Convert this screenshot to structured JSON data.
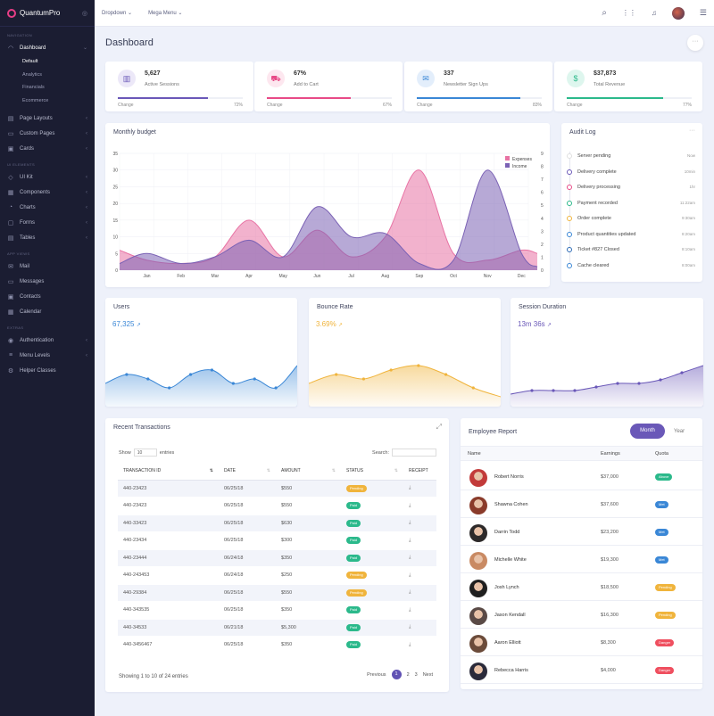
{
  "brand": {
    "name": "QuantumPro"
  },
  "sidebar": {
    "h_nav": "Navigation",
    "h_elem": "UI Elements",
    "h_apps": "App Views",
    "h_extra": "Extras",
    "dashboard": "Dashboard",
    "subs": [
      "Default",
      "Analytics",
      "Financials",
      "Ecommerce"
    ],
    "items1": [
      "Page Layouts",
      "Custom Pages",
      "Cards"
    ],
    "items2": [
      "UI Kit",
      "Components",
      "Charts",
      "Forms",
      "Tables"
    ],
    "items3": [
      "Mail",
      "Messages",
      "Contacts",
      "Calendar"
    ],
    "items4": [
      "Authentication",
      "Menu Levels",
      "Helper Classes"
    ]
  },
  "topbar": {
    "dropdown": "Dropdown",
    "mega": "Mega Menu"
  },
  "page": {
    "title": "Dashboard"
  },
  "stats": [
    {
      "value": "5,627",
      "label": "Active Sessions",
      "change": "Change",
      "pct": "72%",
      "progress": 0.72,
      "color": "#6a58b8",
      "bg": "#ece8f8",
      "icon": "bar-chart-icon",
      "glyph": "▥"
    },
    {
      "value": "67%",
      "label": "Add to Cart",
      "change": "Change",
      "pct": "67%",
      "progress": 0.67,
      "color": "#e84a87",
      "bg": "#fde7ef",
      "icon": "cart-icon",
      "glyph": "⛟"
    },
    {
      "value": "337",
      "label": "Newsletter Sign Ups",
      "change": "Change",
      "pct": "83%",
      "progress": 0.83,
      "color": "#3a87d6",
      "bg": "#e3eefb",
      "icon": "mail-icon",
      "glyph": "✉"
    },
    {
      "value": "$37,873",
      "label": "Total Revenue",
      "change": "Change",
      "pct": "77%",
      "progress": 0.77,
      "color": "#2bb98b",
      "bg": "#def6ee",
      "icon": "dollar-icon",
      "glyph": "$"
    }
  ],
  "budget": {
    "title": "Monthly budget"
  },
  "chart_data": {
    "type": "area",
    "title": "Monthly budget",
    "categories": [
      "Jan",
      "Feb",
      "Mar",
      "Apr",
      "May",
      "Jun",
      "Jul",
      "Aug",
      "Sep",
      "Oct",
      "Nov",
      "Dec"
    ],
    "ylim_left": [
      0,
      35
    ],
    "ylim_right": [
      0,
      9
    ],
    "series": [
      {
        "name": "Expenses",
        "color": "#e873a4",
        "values": [
          3,
          2,
          4,
          15,
          4,
          12,
          4,
          10,
          30,
          5,
          3,
          6
        ]
      },
      {
        "name": "Income",
        "color": "#7b62b5",
        "values": [
          5,
          2,
          4,
          9,
          4,
          19,
          10,
          11,
          2,
          3,
          30,
          5
        ]
      }
    ]
  },
  "audit": {
    "title": "Audit Log",
    "items": [
      {
        "text": "Server pending",
        "time": "Now",
        "color": "#e0e0e0"
      },
      {
        "text": "Delivery complete",
        "time": "10min",
        "color": "#6a58b8"
      },
      {
        "text": "Delivery processing",
        "time": "1hr",
        "color": "#e84a87"
      },
      {
        "text": "Payment recorded",
        "time": "11:22am",
        "color": "#2bb98b"
      },
      {
        "text": "Order complete",
        "time": "9:30am",
        "color": "#f0b43c"
      },
      {
        "text": "Product quantities updated",
        "time": "8:20am",
        "color": "#3a87d6"
      },
      {
        "text": "Ticket #827 Closed",
        "time": "8:10am",
        "color": "#2b6ab5"
      },
      {
        "text": "Cache cleared",
        "time": "8:00am",
        "color": "#3a87d6"
      }
    ]
  },
  "sparks": [
    {
      "title": "Users",
      "value": "67,325",
      "color": "#3a87d6",
      "values": [
        4,
        6,
        5,
        3,
        6,
        7,
        4,
        5,
        3,
        8
      ]
    },
    {
      "title": "Bounce Rate",
      "value": "3.69%",
      "color": "#f0b43c",
      "values": [
        4,
        6,
        5,
        7,
        8,
        6,
        3,
        1
      ]
    },
    {
      "title": "Session Duration",
      "value": "13m 36s",
      "color": "#6a58b8",
      "values": [
        2,
        3,
        3,
        3,
        4,
        5,
        5,
        6,
        8,
        10
      ]
    }
  ],
  "transactions": {
    "title": "Recent Transactions",
    "show": "Show",
    "entries": "entries",
    "per_page": "10",
    "search": "Search:",
    "headers": [
      "TRANSACTION ID",
      "DATE",
      "AMOUNT",
      "STATUS",
      "RECEIPT"
    ],
    "rows": [
      {
        "id": "440-23423",
        "date": "06/25/18",
        "amount": "$550",
        "status": "Pending"
      },
      {
        "id": "440-23423",
        "date": "06/25/18",
        "amount": "$550",
        "status": "Paid"
      },
      {
        "id": "440-33423",
        "date": "06/25/18",
        "amount": "$630",
        "status": "Paid"
      },
      {
        "id": "440-23434",
        "date": "06/25/18",
        "amount": "$300",
        "status": "Paid"
      },
      {
        "id": "440-23444",
        "date": "06/24/18",
        "amount": "$350",
        "status": "Paid"
      },
      {
        "id": "440-243453",
        "date": "06/24/18",
        "amount": "$250",
        "status": "Pending"
      },
      {
        "id": "440-29384",
        "date": "06/25/18",
        "amount": "$550",
        "status": "Pending"
      },
      {
        "id": "440-343535",
        "date": "06/25/18",
        "amount": "$350",
        "status": "Paid"
      },
      {
        "id": "440-34533",
        "date": "06/21/18",
        "amount": "$5,300",
        "status": "Paid"
      },
      {
        "id": "440-3456467",
        "date": "06/25/18",
        "amount": "$350",
        "status": "Paid"
      }
    ],
    "footer": "Showing 1 to 10 of 24 entries",
    "prev": "Previous",
    "pages": [
      "1",
      "2",
      "3"
    ],
    "next": "Next"
  },
  "employee": {
    "title": "Employee Report",
    "tab_month": "Month",
    "tab_year": "Year",
    "headers": [
      "Name",
      "Earnings",
      "Quota"
    ],
    "rows": [
      {
        "name": "Robert Norris",
        "earnings": "$37,000",
        "quota": "Above",
        "qcolor": "#2bb98b"
      },
      {
        "name": "Shawna Cohen",
        "earnings": "$37,600",
        "quota": "Met",
        "qcolor": "#3a87d6"
      },
      {
        "name": "Darrin Todd",
        "earnings": "$23,200",
        "quota": "Met",
        "qcolor": "#3a87d6"
      },
      {
        "name": "Michelle White",
        "earnings": "$19,300",
        "quota": "Met",
        "qcolor": "#3a87d6"
      },
      {
        "name": "Josh Lynch",
        "earnings": "$18,500",
        "quota": "Pending",
        "qcolor": "#f0b43c"
      },
      {
        "name": "Jason Kendall",
        "earnings": "$16,300",
        "quota": "Pending",
        "qcolor": "#f0b43c"
      },
      {
        "name": "Aaron Elliott",
        "earnings": "$8,300",
        "quota": "Danger",
        "qcolor": "#ef4f5f"
      },
      {
        "name": "Rebecca Harris",
        "earnings": "$4,000",
        "quota": "Danger",
        "qcolor": "#ef4f5f"
      }
    ]
  }
}
